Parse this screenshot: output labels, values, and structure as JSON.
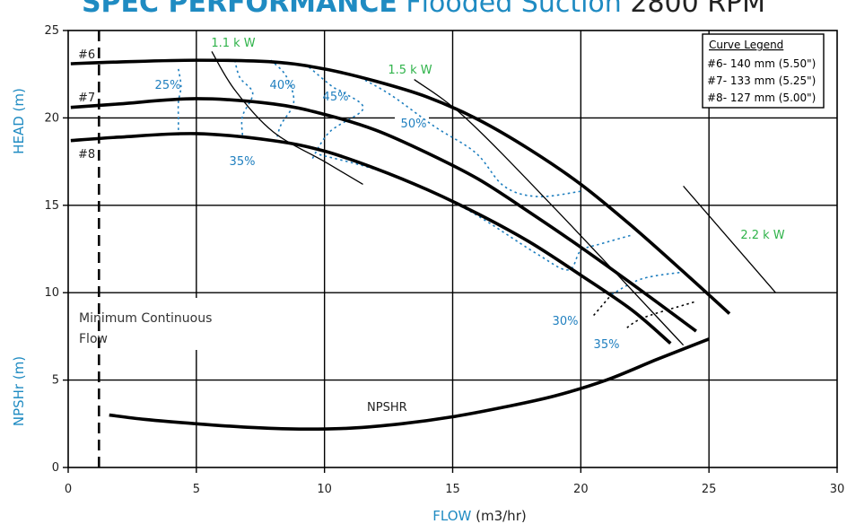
{
  "title": {
    "part1": "SPEC PERFORMANCE",
    "part2": "Flooded Suction",
    "part3": "2800 RPM"
  },
  "chart_data": {
    "type": "line",
    "xlabel": "FLOW",
    "xlabel_units": "(m3/hr)",
    "ylabel_head": "HEAD (m)",
    "ylabel_npsh": "NPSHr (m)",
    "xlim": [
      0,
      30
    ],
    "ylim": [
      0,
      25
    ],
    "xticks": [
      0,
      5,
      10,
      15,
      20,
      25,
      30
    ],
    "yticks": [
      0,
      5,
      10,
      15,
      20,
      25
    ],
    "grid": true,
    "min_flow_label": [
      "Minimum Continuous",
      "Flow"
    ],
    "min_flow_x": 1.2,
    "legend": {
      "title": "Curve Legend",
      "entries": [
        "#6- 140 mm (5.50\")",
        "#7- 133 mm (5.25\")",
        "#8- 127 mm (5.00\")"
      ],
      "placement": "top-right"
    },
    "series": [
      {
        "name": "#6",
        "points": [
          [
            0.1,
            23.1
          ],
          [
            2,
            23.2
          ],
          [
            5,
            23.3
          ],
          [
            8,
            23.2
          ],
          [
            10,
            22.8
          ],
          [
            12,
            22.1
          ],
          [
            14,
            21.2
          ],
          [
            16,
            19.9
          ],
          [
            18,
            18.2
          ],
          [
            20,
            16.2
          ],
          [
            22,
            13.8
          ],
          [
            24,
            11.2
          ],
          [
            25.8,
            8.8
          ]
        ]
      },
      {
        "name": "#7",
        "points": [
          [
            0.1,
            20.6
          ],
          [
            2,
            20.8
          ],
          [
            5,
            21.1
          ],
          [
            8,
            20.8
          ],
          [
            10,
            20.2
          ],
          [
            12,
            19.3
          ],
          [
            14,
            18.0
          ],
          [
            16,
            16.5
          ],
          [
            18,
            14.6
          ],
          [
            20,
            12.6
          ],
          [
            22,
            10.5
          ],
          [
            24.5,
            7.8
          ]
        ]
      },
      {
        "name": "#8",
        "points": [
          [
            0.1,
            18.7
          ],
          [
            2,
            18.9
          ],
          [
            5,
            19.1
          ],
          [
            8,
            18.7
          ],
          [
            10,
            18.1
          ],
          [
            12,
            17.1
          ],
          [
            14,
            15.9
          ],
          [
            16,
            14.5
          ],
          [
            18,
            12.9
          ],
          [
            20,
            11.0
          ],
          [
            22,
            9.0
          ],
          [
            23.5,
            7.1
          ]
        ]
      },
      {
        "name": "NPSHR",
        "points": [
          [
            1.6,
            3.0
          ],
          [
            3,
            2.75
          ],
          [
            5,
            2.5
          ],
          [
            7,
            2.3
          ],
          [
            9,
            2.2
          ],
          [
            11,
            2.25
          ],
          [
            13,
            2.5
          ],
          [
            15,
            2.9
          ],
          [
            17,
            3.45
          ],
          [
            19,
            4.1
          ],
          [
            21,
            5.0
          ],
          [
            23,
            6.2
          ],
          [
            25,
            7.35
          ]
        ]
      }
    ],
    "power_lines": [
      {
        "label": "1.1 k W",
        "points": [
          [
            5.6,
            23.8
          ],
          [
            6.5,
            21.6
          ],
          [
            8,
            19.2
          ],
          [
            10,
            17.5
          ],
          [
            11.5,
            16.2
          ]
        ]
      },
      {
        "label": "1.5 k W",
        "points": [
          [
            13.5,
            22.2
          ],
          [
            15.5,
            20.0
          ],
          [
            19,
            14.8
          ],
          [
            24,
            7.0
          ]
        ]
      },
      {
        "label": "2.2 k W",
        "points": [
          [
            24,
            16.1
          ],
          [
            27.6,
            10.0
          ]
        ]
      }
    ],
    "efficiency_curves": [
      {
        "label": "25%",
        "points": [
          [
            4.3,
            22.8
          ],
          [
            4.4,
            21.8
          ],
          [
            4.3,
            20.9
          ],
          [
            4.3,
            19.9
          ],
          [
            4.3,
            18.9
          ]
        ]
      },
      {
        "label": "35%",
        "points": [
          [
            6.5,
            23.3
          ],
          [
            6.7,
            22.3
          ],
          [
            7.2,
            21.4
          ],
          [
            6.8,
            20.1
          ],
          [
            6.8,
            19.0
          ]
        ]
      },
      {
        "label": "40%",
        "points": [
          [
            7.9,
            23.3
          ],
          [
            8.5,
            22.4
          ],
          [
            8.8,
            20.9
          ],
          [
            8.3,
            19.6
          ],
          [
            8.1,
            18.6
          ]
        ]
      },
      {
        "label": "45%",
        "points": [
          [
            9.4,
            22.9
          ],
          [
            10.3,
            21.8
          ],
          [
            10.8,
            21.4
          ],
          [
            11.5,
            20.5
          ],
          [
            10.2,
            19.2
          ],
          [
            9.5,
            17.6
          ]
        ]
      },
      {
        "label": "50%",
        "points": [
          [
            11.4,
            22.3
          ],
          [
            12.6,
            21.3
          ],
          [
            14.3,
            19.5
          ],
          [
            15.9,
            18.0
          ],
          [
            17.0,
            16.1
          ],
          [
            18.3,
            15.5
          ],
          [
            20.0,
            15.8
          ]
        ]
      },
      {
        "label": "30%",
        "points": [
          [
            9.8,
            17.9
          ],
          [
            12.5,
            16.8
          ],
          [
            15.5,
            14.8
          ],
          [
            18.2,
            12.3
          ],
          [
            19.5,
            11.3
          ],
          [
            20.0,
            12.4
          ],
          [
            20.8,
            12.8
          ],
          [
            22.0,
            13.3
          ]
        ]
      },
      {
        "label": "35%",
        "points": [
          [
            21.2,
            9.9
          ],
          [
            22.4,
            10.8
          ],
          [
            24.1,
            11.2
          ]
        ]
      }
    ],
    "efficiency_black_segments": [
      [
        [
          20.5,
          8.7
        ],
        [
          21.2,
          9.9
        ]
      ],
      [
        [
          21.8,
          8.0
        ],
        [
          22.5,
          8.6
        ],
        [
          24.5,
          9.5
        ]
      ]
    ],
    "curve_labels": [
      "#6",
      "#7",
      "#8",
      "NPSHR"
    ],
    "colors": {
      "axis_label": "#1f8bc2",
      "efficiency": "#1f7fbf",
      "power": "#2fb34a",
      "curve": "#000000",
      "grid": "#000000"
    }
  }
}
